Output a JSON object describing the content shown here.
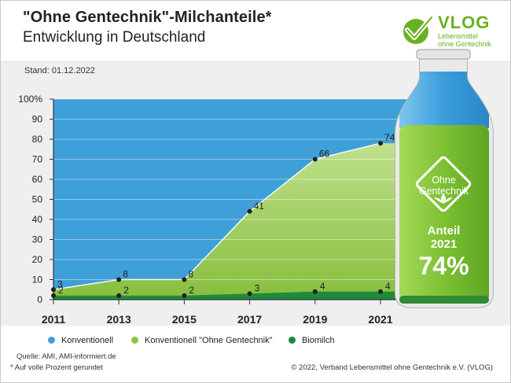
{
  "header": {
    "title": "\"Ohne Gentechnik\"-Milchanteile*",
    "subtitle": "Entwicklung in Deutschland"
  },
  "logo": {
    "word": "VLOG",
    "line1": "Lebensmittel",
    "line2": "ohne Gentechnik"
  },
  "stand": "Stand: 01.12.2022",
  "chart_data": {
    "type": "area",
    "x": [
      2011,
      2013,
      2015,
      2017,
      2019,
      2021
    ],
    "x_tick_labels": [
      "2011",
      "2013",
      "2015",
      "2017",
      "2019",
      "2021"
    ],
    "y_tick_labels": [
      "0",
      "10",
      "20",
      "30",
      "40",
      "50",
      "60",
      "70",
      "80",
      "90",
      "100%"
    ],
    "ylim": [
      0,
      100
    ],
    "stacked": true,
    "grid": true,
    "series": [
      {
        "name": "Biomilch",
        "values": [
          2,
          2,
          2,
          3,
          4,
          4
        ],
        "color": "#1f8a3a"
      },
      {
        "name": "Konventionell \"Ohne Gentechnik\"",
        "values": [
          3,
          8,
          8,
          41,
          66,
          74
        ],
        "color": "#8cc440"
      },
      {
        "name": "Konventionell",
        "color": "#3f9fd9"
      }
    ],
    "label_values": {
      "ohne_gentechnik": [
        "3",
        "8",
        "8",
        "41",
        "66",
        "74"
      ],
      "biomilch": [
        "2",
        "2",
        "2",
        "3",
        "4",
        "4"
      ]
    },
    "data_label_positions_y": [
      5,
      10,
      10,
      44,
      70,
      78
    ]
  },
  "legend": [
    {
      "label": "Konventionell",
      "color": "#3f9fd9"
    },
    {
      "label": "Konventionell \"Ohne Gentechnik\"",
      "color": "#8cc440"
    },
    {
      "label": "Biomilch",
      "color": "#1f8a3a"
    }
  ],
  "bottle": {
    "badge_line1": "Ohne",
    "badge_line2": "Gentechnik",
    "anteil": "Anteil",
    "year": "2021",
    "percent": "74%"
  },
  "footer": {
    "source": "Quelle: AMI, AMI-informiert.de",
    "note": "*  Auf volle Prozent gerundet",
    "copyright": "© 2022, Verband Lebensmittel ohne Gentechnik e.V. (VLOG)"
  },
  "colors": {
    "blue": "#3f9fd9",
    "light_green": "#8cc440",
    "dark_green": "#1f8a3a",
    "brand_green": "#6ab023"
  }
}
